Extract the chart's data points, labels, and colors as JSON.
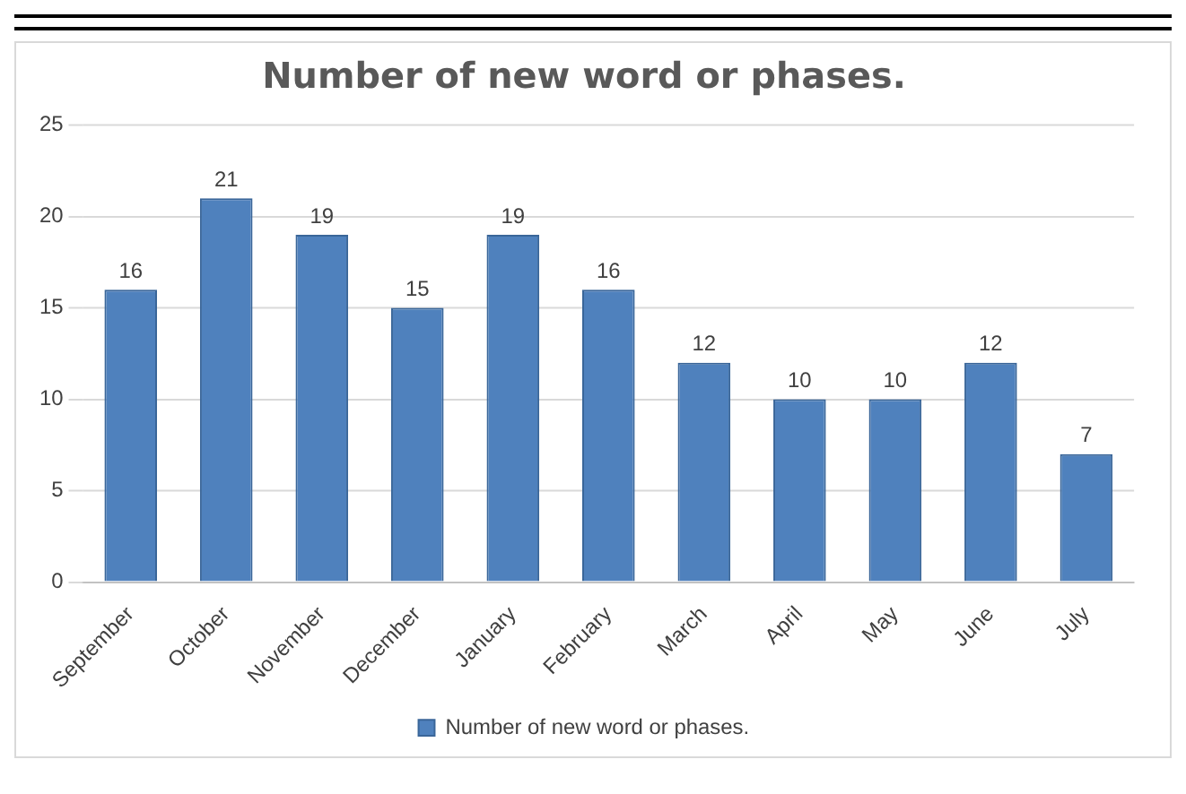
{
  "chart_data": {
    "type": "bar",
    "title": "Number of new word or phases.",
    "categories": [
      "September",
      "October",
      "November",
      "December",
      "January",
      "February",
      "March",
      "April",
      "May",
      "June",
      "July"
    ],
    "series": [
      {
        "name": "Number of new word or phases.",
        "color": "#4f81bd",
        "values": [
          16,
          21,
          19,
          15,
          19,
          16,
          12,
          10,
          10,
          12,
          7
        ]
      }
    ],
    "ylim": [
      0,
      25
    ],
    "yticks": [
      0,
      5,
      10,
      15,
      20,
      25
    ],
    "grid": "y",
    "legend": "bottom",
    "data_labels": true
  }
}
